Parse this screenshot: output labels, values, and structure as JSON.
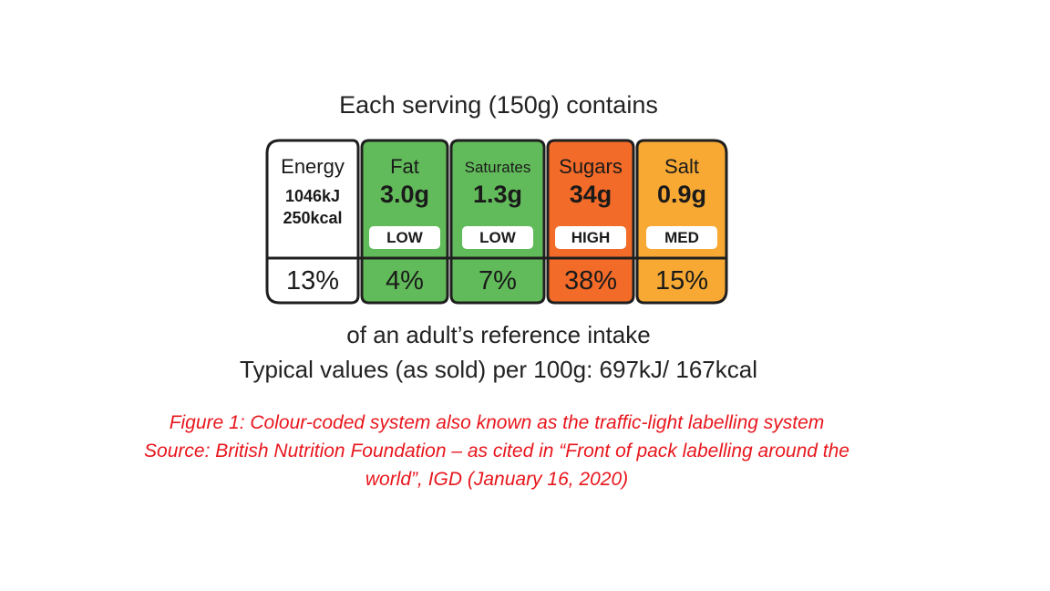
{
  "label": {
    "heading": "Each serving (150g) contains",
    "energy": {
      "name": "Energy",
      "kj": "1046kJ",
      "kcal": "250kcal",
      "percent": "13%"
    },
    "nutrients": [
      {
        "name": "Fat",
        "amount": "3.0g",
        "level": "LOW",
        "percent": "4%",
        "color": "#62bb5a"
      },
      {
        "name": "Saturates",
        "amount": "1.3g",
        "level": "LOW",
        "percent": "7%",
        "color": "#62bb5a"
      },
      {
        "name": "Sugars",
        "amount": "34g",
        "level": "HIGH",
        "percent": "38%",
        "color": "#f36b28"
      },
      {
        "name": "Salt",
        "amount": "0.9g",
        "level": "MED",
        "percent": "15%",
        "color": "#f7a934"
      }
    ],
    "reference_text": "of an adult’s reference intake",
    "typical_values": "Typical values (as sold) per 100g: 697kJ/ 167kcal"
  },
  "caption": {
    "line1": "Figure 1: Colour-coded system also known as the traffic-light labelling system",
    "line2": "Source: British Nutrition Foundation – as cited in “Front of pack labelling around the",
    "line3": "world”, IGD (January 16, 2020)"
  }
}
